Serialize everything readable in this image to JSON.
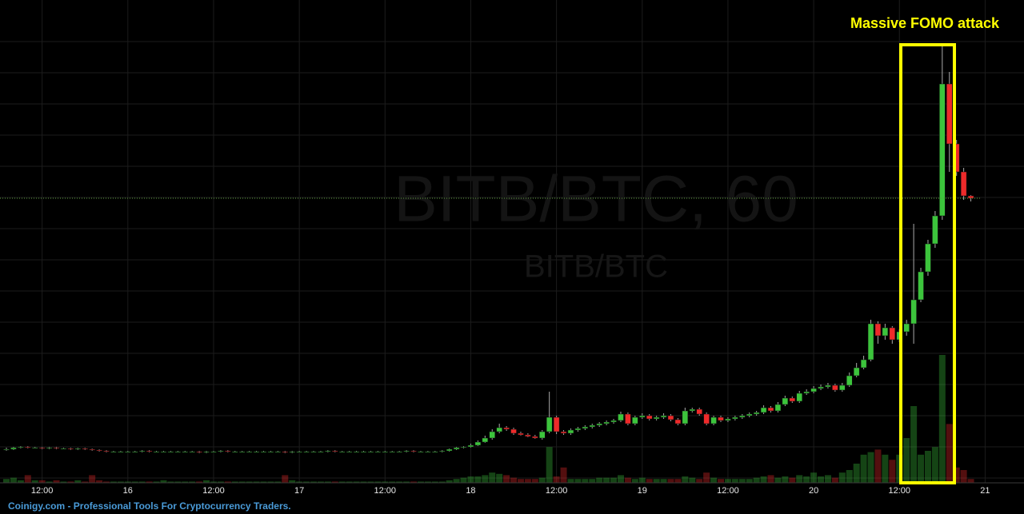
{
  "chart_data": {
    "type": "candlestick",
    "watermark": "BITB/BTC, 60",
    "watermark_subtitle": "BITB/BTC",
    "annotation": "Massive FOMO attack",
    "up_color": "#3cc43c",
    "down_color": "#ee2a2a",
    "volume_color": "#2f8fd0",
    "ylim": [
      0,
      600
    ],
    "y2lim": [
      0,
      100
    ],
    "categories": [
      null,
      null,
      null,
      null,
      null,
      "12:00",
      null,
      null,
      null,
      null,
      null,
      null,
      null,
      null,
      null,
      null,
      null,
      "16",
      null,
      null,
      null,
      null,
      null,
      null,
      null,
      null,
      null,
      null,
      null,
      "12:00",
      null,
      null,
      null,
      null,
      null,
      null,
      null,
      null,
      null,
      null,
      null,
      "17",
      null,
      null,
      null,
      null,
      null,
      null,
      null,
      null,
      null,
      null,
      null,
      "12:00",
      null,
      null,
      null,
      null,
      null,
      null,
      null,
      null,
      null,
      null,
      null,
      "18",
      null,
      null,
      null,
      null,
      null,
      null,
      null,
      null,
      null,
      null,
      null,
      "12:00",
      null,
      null,
      null,
      null,
      null,
      null,
      null,
      null,
      null,
      null,
      null,
      "19",
      null,
      null,
      null,
      null,
      null,
      null,
      null,
      null,
      null,
      null,
      null,
      "12:00",
      null,
      null,
      null,
      null,
      null,
      null,
      null,
      null,
      null,
      null,
      null,
      "20",
      null,
      null,
      null,
      null,
      null,
      null,
      null,
      null,
      null,
      null,
      null,
      "12:00",
      null,
      null,
      null,
      null,
      null,
      null,
      null,
      null,
      null,
      null,
      null,
      "21"
    ],
    "open": [
      37,
      38,
      40,
      41,
      40,
      40,
      39,
      40,
      39,
      39,
      38,
      39,
      38,
      37,
      36,
      35,
      35,
      35,
      35,
      35,
      36,
      35,
      35,
      35,
      35,
      35,
      35,
      35,
      34,
      35,
      35,
      36,
      35,
      35,
      35,
      35,
      35,
      35,
      35,
      35,
      34,
      35,
      35,
      35,
      35,
      35,
      36,
      35,
      35,
      35,
      35,
      35,
      35,
      35,
      35,
      35,
      35,
      36,
      35,
      35,
      35,
      35,
      36,
      38,
      40,
      41,
      43,
      47,
      52,
      60,
      65,
      63,
      58,
      56,
      54,
      52,
      60,
      78,
      60,
      58,
      62,
      64,
      66,
      68,
      70,
      72,
      74,
      82,
      70,
      78,
      80,
      76,
      78,
      80,
      75,
      70,
      86,
      88,
      82,
      70,
      78,
      74,
      76,
      78,
      80,
      82,
      84,
      90,
      86,
      94,
      102,
      98,
      108,
      110,
      114,
      116,
      118,
      112,
      118,
      130,
      140,
      150,
      195,
      180,
      190,
      175,
      185,
      195,
      225,
      260,
      295,
      330,
      495,
      420,
      385,
      355,
      null,
      null
    ],
    "high": [
      40,
      41,
      42,
      42,
      41,
      41,
      41,
      41,
      40,
      40,
      40,
      40,
      39,
      38,
      37,
      36,
      36,
      36,
      36,
      37,
      37,
      36,
      36,
      36,
      36,
      36,
      36,
      36,
      36,
      36,
      37,
      37,
      36,
      36,
      36,
      36,
      36,
      36,
      36,
      36,
      36,
      36,
      36,
      36,
      36,
      37,
      37,
      36,
      36,
      36,
      36,
      36,
      36,
      36,
      36,
      36,
      37,
      37,
      36,
      36,
      36,
      37,
      39,
      41,
      42,
      45,
      49,
      55,
      63,
      70,
      67,
      65,
      60,
      58,
      56,
      62,
      110,
      80,
      62,
      64,
      66,
      68,
      70,
      72,
      74,
      76,
      85,
      84,
      80,
      83,
      82,
      80,
      83,
      82,
      77,
      90,
      90,
      90,
      84,
      80,
      80,
      78,
      80,
      82,
      84,
      86,
      93,
      92,
      97,
      105,
      104,
      111,
      113,
      117,
      119,
      121,
      120,
      121,
      134,
      146,
      155,
      200,
      198,
      195,
      192,
      188,
      200,
      320,
      265,
      300,
      336,
      545,
      510,
      425,
      390,
      356,
      null,
      null
    ],
    "low": [
      36,
      37,
      39,
      39,
      39,
      38,
      38,
      38,
      38,
      37,
      37,
      37,
      36,
      35,
      34,
      34,
      34,
      34,
      34,
      34,
      34,
      34,
      34,
      34,
      34,
      34,
      34,
      33,
      33,
      34,
      34,
      34,
      34,
      34,
      34,
      34,
      34,
      34,
      34,
      33,
      33,
      34,
      34,
      34,
      34,
      34,
      34,
      34,
      34,
      34,
      34,
      34,
      34,
      34,
      34,
      34,
      34,
      34,
      34,
      34,
      34,
      34,
      35,
      37,
      39,
      40,
      42,
      46,
      50,
      58,
      61,
      56,
      55,
      53,
      51,
      50,
      58,
      57,
      56,
      56,
      60,
      62,
      64,
      66,
      68,
      70,
      72,
      68,
      68,
      76,
      74,
      74,
      76,
      73,
      68,
      68,
      84,
      80,
      68,
      68,
      72,
      72,
      74,
      76,
      78,
      80,
      82,
      84,
      84,
      92,
      96,
      96,
      106,
      108,
      112,
      114,
      110,
      110,
      116,
      128,
      138,
      148,
      170,
      175,
      170,
      172,
      180,
      170,
      222,
      255,
      290,
      325,
      385,
      380,
      350,
      348,
      null,
      null
    ],
    "close": [
      38,
      40,
      41,
      40,
      40,
      39,
      40,
      39,
      39,
      38,
      39,
      38,
      37,
      36,
      35,
      35,
      35,
      35,
      35,
      36,
      35,
      35,
      35,
      35,
      35,
      35,
      35,
      34,
      35,
      35,
      36,
      35,
      35,
      35,
      35,
      35,
      35,
      35,
      35,
      34,
      35,
      35,
      35,
      35,
      35,
      36,
      35,
      35,
      35,
      35,
      35,
      35,
      35,
      35,
      35,
      35,
      36,
      35,
      35,
      35,
      35,
      36,
      38,
      40,
      41,
      43,
      47,
      52,
      60,
      65,
      63,
      58,
      56,
      54,
      52,
      60,
      78,
      60,
      58,
      62,
      64,
      66,
      68,
      70,
      72,
      74,
      82,
      70,
      78,
      80,
      76,
      78,
      80,
      75,
      70,
      86,
      88,
      82,
      70,
      78,
      74,
      76,
      78,
      80,
      82,
      84,
      90,
      86,
      94,
      102,
      98,
      108,
      110,
      114,
      116,
      118,
      112,
      118,
      130,
      140,
      150,
      195,
      180,
      190,
      175,
      185,
      195,
      225,
      260,
      295,
      330,
      495,
      420,
      385,
      355,
      352,
      null,
      null
    ],
    "volume": [
      3,
      4,
      2,
      6,
      2,
      2,
      1,
      2,
      1,
      1,
      2,
      1,
      6,
      2,
      1,
      1,
      1,
      1,
      1,
      1,
      1,
      1,
      2,
      1,
      1,
      1,
      1,
      1,
      2,
      1,
      1,
      1,
      1,
      1,
      1,
      1,
      1,
      1,
      1,
      6,
      2,
      1,
      1,
      1,
      1,
      1,
      1,
      1,
      1,
      1,
      1,
      1,
      1,
      1,
      1,
      1,
      1,
      1,
      1,
      1,
      1,
      1,
      2,
      3,
      4,
      5,
      5,
      6,
      8,
      7,
      6,
      4,
      3,
      3,
      3,
      4,
      28,
      5,
      12,
      3,
      3,
      3,
      3,
      4,
      4,
      4,
      6,
      4,
      3,
      4,
      3,
      3,
      3,
      3,
      3,
      5,
      4,
      3,
      8,
      4,
      3,
      3,
      3,
      3,
      3,
      4,
      5,
      6,
      4,
      5,
      4,
      6,
      5,
      8,
      5,
      6,
      4,
      8,
      10,
      15,
      22,
      24,
      26,
      22,
      18,
      22,
      35,
      60,
      22,
      25,
      28,
      100,
      46,
      12,
      10,
      3,
      null,
      null
    ]
  },
  "footer": "Coinigy.com - Professional Tools For Cryptocurrency Traders."
}
